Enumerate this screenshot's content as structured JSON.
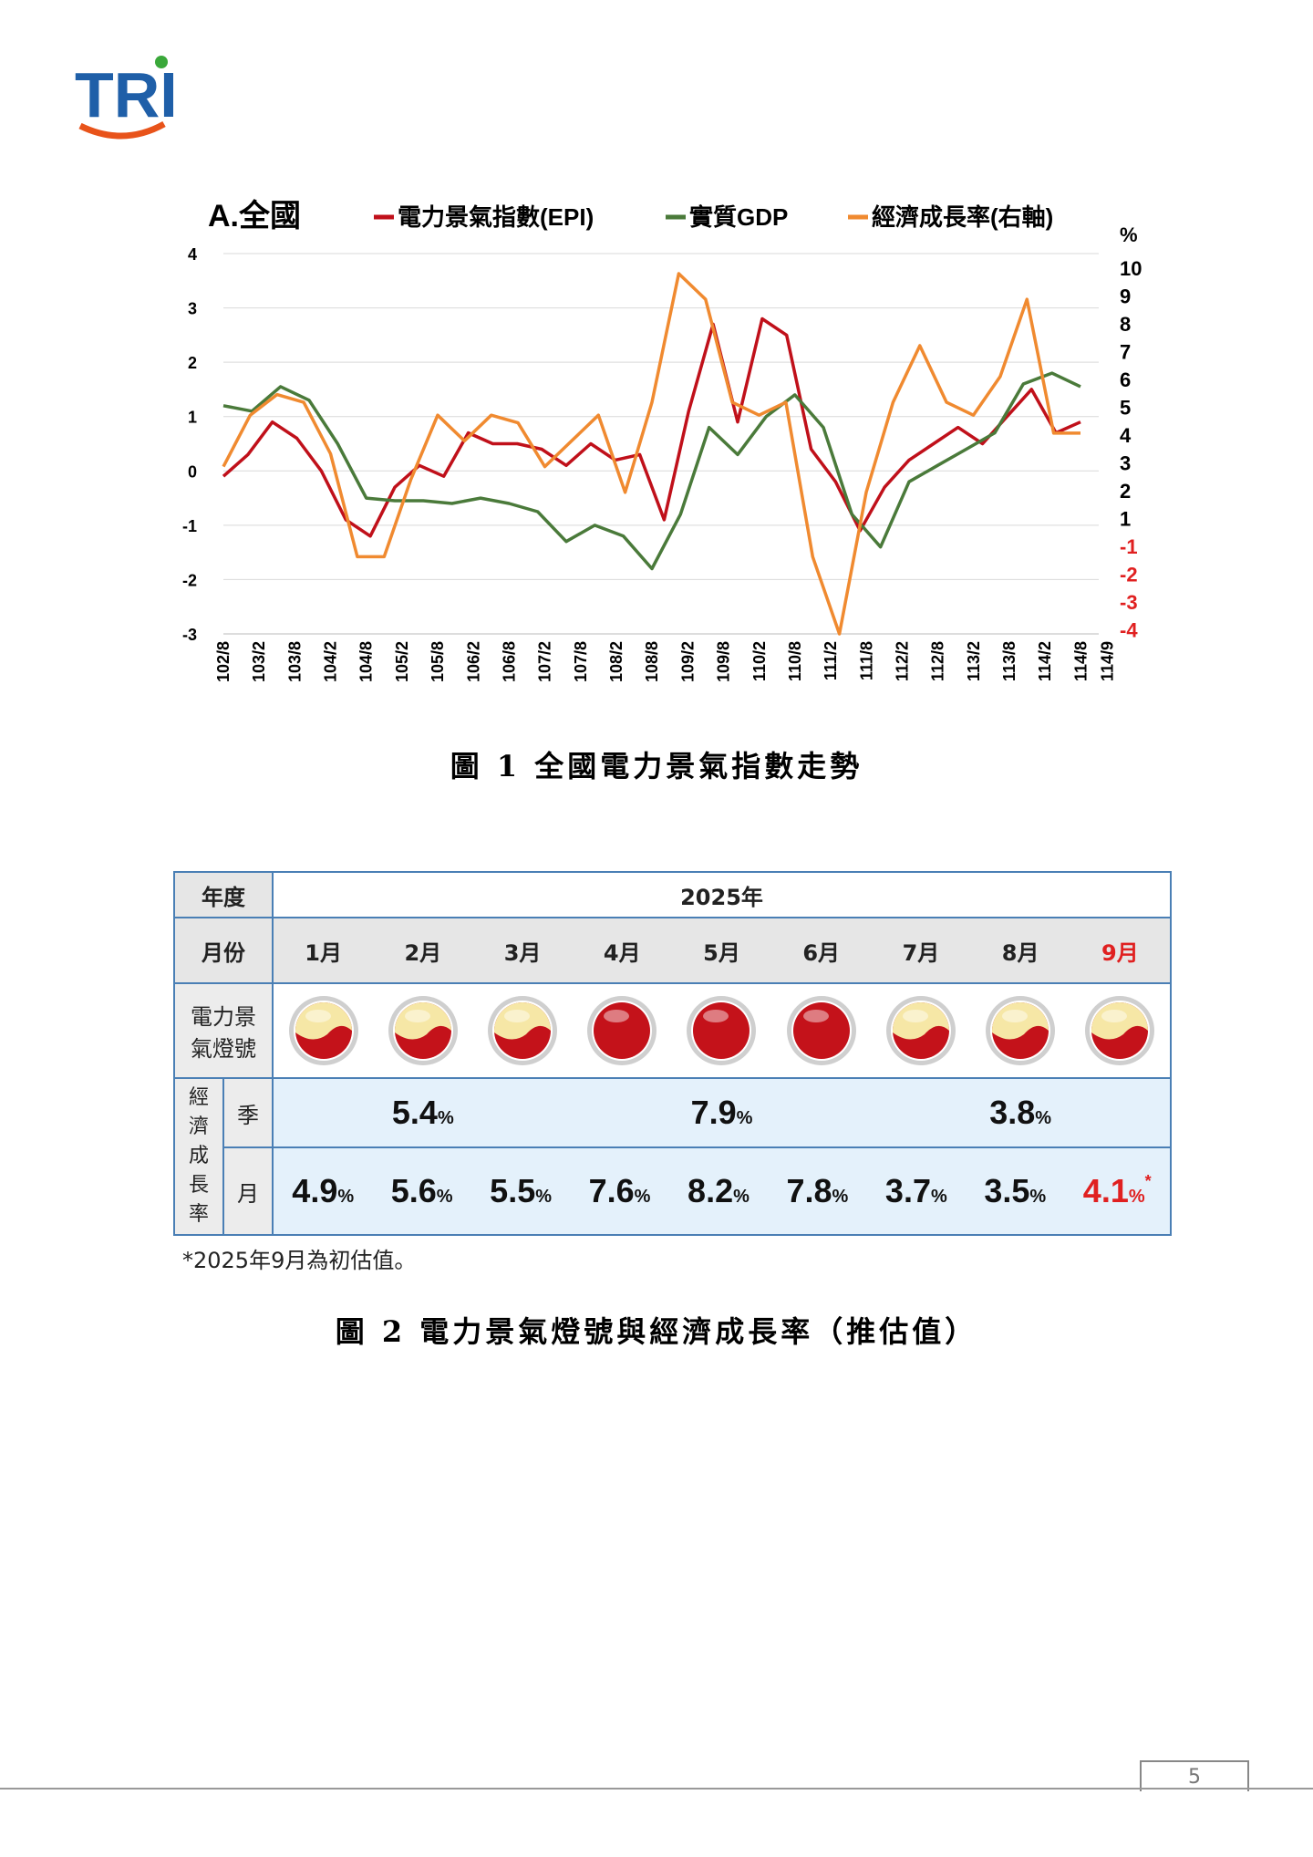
{
  "logo_text": "TRI",
  "figure1": {
    "caption": "圖 1  全國電力景氣指數走勢",
    "chart_data": {
      "type": "line",
      "title": "A.全國",
      "right_axis_label": "%",
      "legend": [
        "電力景氣指數(EPI)",
        "實質GDP",
        "經濟成長率(右軸)"
      ],
      "x_ticks": [
        "102/8",
        "103/2",
        "103/8",
        "104/2",
        "104/8",
        "105/2",
        "105/8",
        "106/2",
        "106/8",
        "107/2",
        "107/8",
        "108/2",
        "108/8",
        "109/2",
        "109/8",
        "110/2",
        "110/8",
        "111/2",
        "111/8",
        "112/2",
        "112/8",
        "113/2",
        "113/8",
        "114/2",
        "114/8",
        "114/9"
      ],
      "left_axis": {
        "ticks": [
          "4",
          "3",
          "2",
          "1",
          "0",
          "-1",
          "-2",
          "-3"
        ],
        "ylim": [
          -3,
          4
        ]
      },
      "right_axis": {
        "ticks": [
          "10",
          "9",
          "8",
          "7",
          "6",
          "5",
          "4",
          "3",
          "2",
          "1",
          "-1",
          "-2",
          "-3",
          "-4"
        ],
        "ylim": [
          -4,
          10
        ]
      },
      "series": [
        {
          "name": "電力景氣指數(EPI)",
          "color": "#c0101a",
          "points": [
            [
              0,
              -0.1
            ],
            [
              1,
              0.3
            ],
            [
              2,
              0.9
            ],
            [
              3,
              0.6
            ],
            [
              4,
              0.0
            ],
            [
              5,
              -0.9
            ],
            [
              6,
              -1.2
            ],
            [
              7,
              -0.3
            ],
            [
              8,
              0.1
            ],
            [
              9,
              -0.1
            ],
            [
              10,
              0.7
            ],
            [
              11,
              0.5
            ],
            [
              12,
              0.5
            ],
            [
              13,
              0.4
            ],
            [
              14,
              0.1
            ],
            [
              15,
              0.5
            ],
            [
              16,
              0.2
            ],
            [
              17,
              0.3
            ],
            [
              18,
              -0.9
            ],
            [
              19,
              1.1
            ],
            [
              20,
              2.7
            ],
            [
              21,
              0.9
            ],
            [
              22,
              2.8
            ],
            [
              23,
              2.5
            ],
            [
              24,
              0.4
            ],
            [
              25,
              -0.2
            ],
            [
              26,
              -1.1
            ],
            [
              27,
              -0.3
            ],
            [
              28,
              0.2
            ],
            [
              29,
              0.5
            ],
            [
              30,
              0.8
            ],
            [
              31,
              0.5
            ],
            [
              32,
              1.0
            ],
            [
              33,
              1.5
            ],
            [
              34,
              0.7
            ],
            [
              35,
              0.9
            ]
          ]
        },
        {
          "name": "實質GDP",
          "color": "#4a7a3a",
          "points": [
            [
              0,
              1.2
            ],
            [
              1,
              1.1
            ],
            [
              2,
              1.55
            ],
            [
              3,
              1.3
            ],
            [
              4,
              0.5
            ],
            [
              5,
              -0.5
            ],
            [
              6,
              -0.55
            ],
            [
              7,
              -0.55
            ],
            [
              8,
              -0.6
            ],
            [
              9,
              -0.5
            ],
            [
              10,
              -0.6
            ],
            [
              11,
              -0.75
            ],
            [
              12,
              -1.3
            ],
            [
              13,
              -1.0
            ],
            [
              14,
              -1.2
            ],
            [
              15,
              -1.8
            ],
            [
              16,
              -0.8
            ],
            [
              17,
              0.8
            ],
            [
              18,
              0.3
            ],
            [
              19,
              1.0
            ],
            [
              20,
              1.4
            ],
            [
              21,
              0.8
            ],
            [
              22,
              -0.8
            ],
            [
              23,
              -1.4
            ],
            [
              24,
              -0.2
            ],
            [
              25,
              0.1
            ],
            [
              26,
              0.4
            ],
            [
              27,
              0.7
            ],
            [
              28,
              1.6
            ],
            [
              29,
              1.8
            ],
            [
              30,
              1.55
            ]
          ]
        },
        {
          "name": "經濟成長率(右軸)",
          "color": "#f08a30",
          "points": [
            [
              0,
              2.5
            ],
            [
              1,
              4.5
            ],
            [
              2,
              5.3
            ],
            [
              3,
              5.0
            ],
            [
              4,
              3.0
            ],
            [
              5,
              -1.0
            ],
            [
              6,
              -1.0
            ],
            [
              7,
              2.0
            ],
            [
              8,
              4.5
            ],
            [
              9,
              3.5
            ],
            [
              10,
              4.5
            ],
            [
              11,
              4.2
            ],
            [
              12,
              2.5
            ],
            [
              13,
              3.5
            ],
            [
              14,
              4.5
            ],
            [
              15,
              1.5
            ],
            [
              16,
              5.0
            ],
            [
              17,
              10.0
            ],
            [
              18,
              9.0
            ],
            [
              19,
              5.0
            ],
            [
              20,
              4.5
            ],
            [
              21,
              5.0
            ],
            [
              22,
              -1.0
            ],
            [
              23,
              -4.0
            ],
            [
              24,
              1.5
            ],
            [
              25,
              5.0
            ],
            [
              26,
              7.2
            ],
            [
              27,
              5.0
            ],
            [
              28,
              4.5
            ],
            [
              29,
              6.0
            ],
            [
              30,
              9.0
            ],
            [
              31,
              3.8
            ],
            [
              32,
              3.8
            ]
          ]
        }
      ]
    }
  },
  "figure2": {
    "caption": "圖 2  電力景氣燈號與經濟成長率（推估值）",
    "year_label": "年度",
    "year_value": "2025年",
    "month_label": "月份",
    "months": [
      "1月",
      "2月",
      "3月",
      "4月",
      "5月",
      "6月",
      "7月",
      "8月",
      "9月"
    ],
    "light_label_line1": "電力景",
    "light_label_line2": "氣燈號",
    "lights": [
      "yellow-red",
      "yellow-red",
      "yellow-red",
      "red",
      "red",
      "red",
      "yellow-red",
      "yellow-red",
      "yellow-red"
    ],
    "growth_label": [
      "經",
      "濟",
      "成",
      "長",
      "率"
    ],
    "quarter_label": "季",
    "month_row_label": "月",
    "quarterly": [
      "5.4",
      "7.9",
      "3.8"
    ],
    "monthly": [
      "4.9",
      "5.6",
      "5.5",
      "7.6",
      "8.2",
      "7.8",
      "3.7",
      "3.5",
      "4.1"
    ],
    "pct": "%",
    "asterisk": "*",
    "footnote": "*2025年9月為初估值。"
  },
  "page_number": "5"
}
